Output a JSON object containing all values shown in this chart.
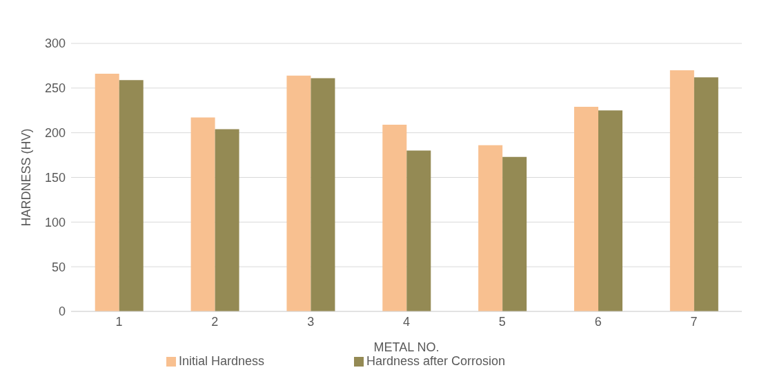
{
  "chart_data": {
    "type": "bar",
    "xlabel": "METAL NO.",
    "ylabel": "HARDNESS (HV)",
    "categories": [
      "1",
      "2",
      "3",
      "4",
      "5",
      "6",
      "7"
    ],
    "series": [
      {
        "name": "Initial Hardness",
        "color": "#f8c090",
        "values": [
          266,
          217,
          264,
          209,
          186,
          229,
          270
        ]
      },
      {
        "name": "Hardness after Corrosion",
        "color": "#948a54",
        "values": [
          259,
          204,
          261,
          180,
          173,
          225,
          262
        ]
      }
    ],
    "ylim": [
      0,
      300
    ],
    "yticks": [
      0,
      50,
      100,
      150,
      200,
      250,
      300
    ],
    "grid": "y",
    "legend": "bottom"
  }
}
